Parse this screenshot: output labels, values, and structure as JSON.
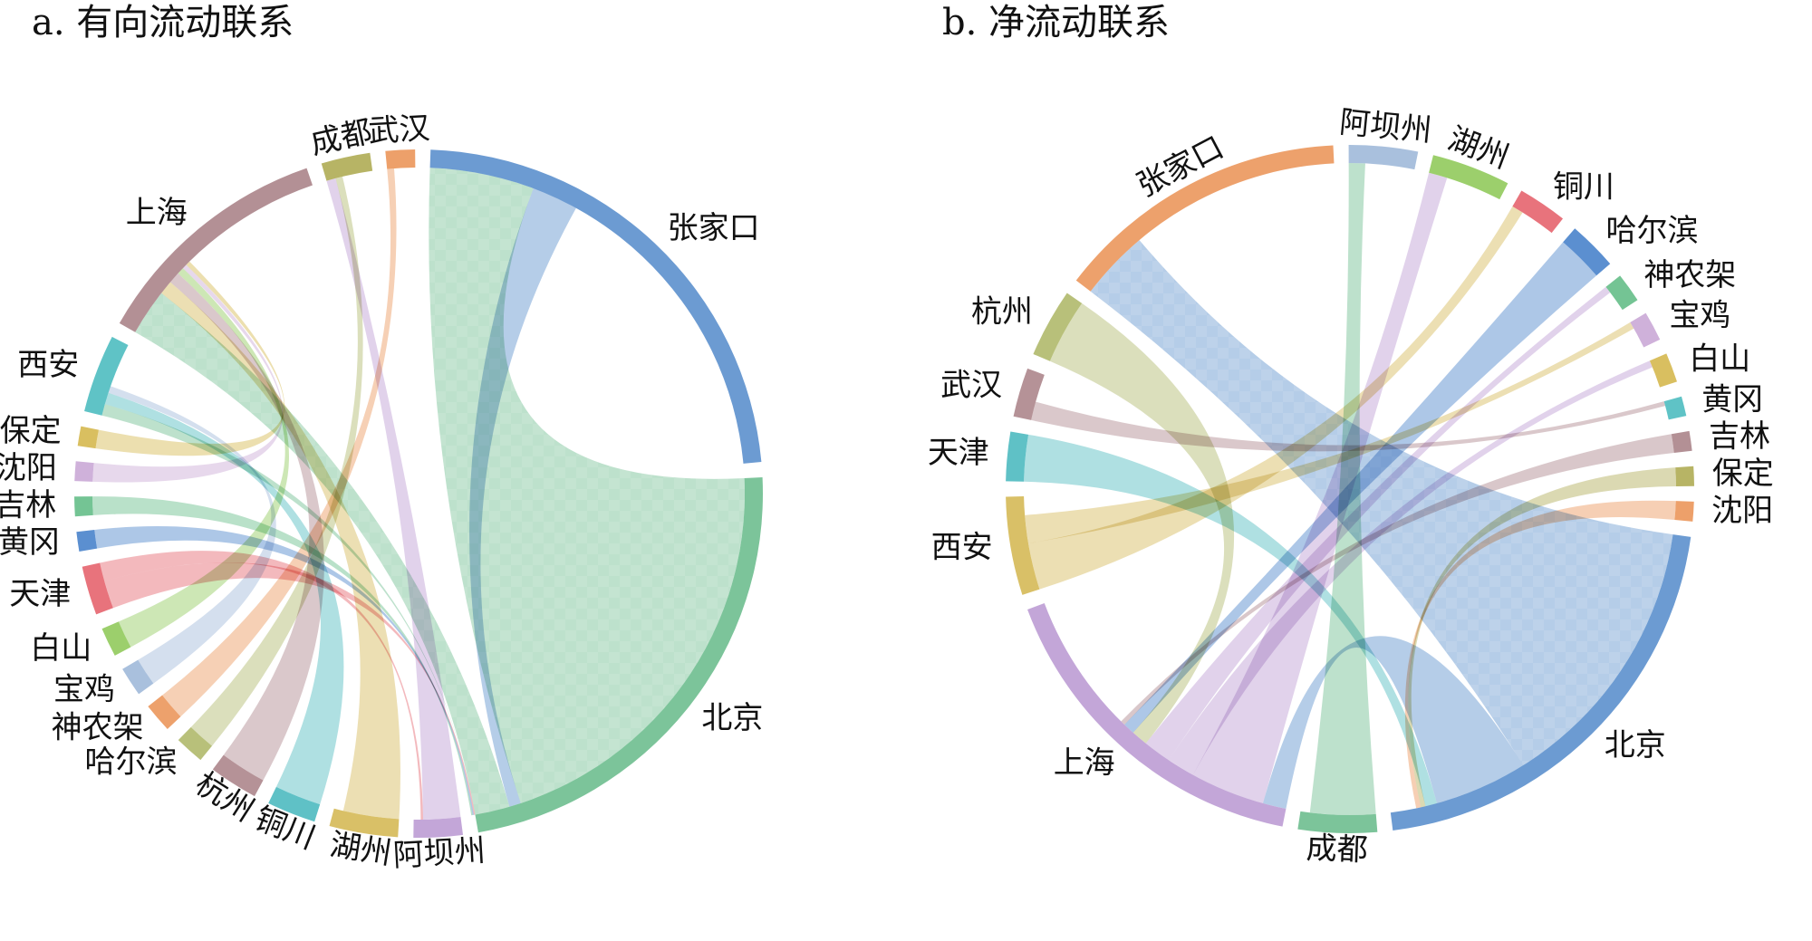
{
  "panels": [
    {
      "id": "a",
      "title": "a. 有向流动联系",
      "nodes": [
        {
          "name": "张家口",
          "color": "#6c9bd2"
        },
        {
          "name": "北京",
          "color": "#7cc49a"
        },
        {
          "name": "阿坝州",
          "color": "#c3a6d8"
        },
        {
          "name": "湖州",
          "color": "#d9c067"
        },
        {
          "name": "铜川",
          "color": "#5fc1c6"
        },
        {
          "name": "杭州",
          "color": "#b59297"
        },
        {
          "name": "哈尔滨",
          "color": "#b8c07a"
        },
        {
          "name": "神农架",
          "color": "#eda16c"
        },
        {
          "name": "宝鸡",
          "color": "#a9c0dd"
        },
        {
          "name": "白山",
          "color": "#9ccf6c"
        },
        {
          "name": "天津",
          "color": "#e8737c"
        },
        {
          "name": "黄冈",
          "color": "#5b8fd0"
        },
        {
          "name": "吉林",
          "color": "#74c494"
        },
        {
          "name": "沈阳",
          "color": "#cfb1da"
        },
        {
          "name": "保定",
          "color": "#d9bf60"
        },
        {
          "name": "西安",
          "color": "#5fc3c6"
        },
        {
          "name": "上海",
          "color": "#b39095"
        },
        {
          "name": "成都",
          "color": "#b7b465"
        },
        {
          "name": "武汉",
          "color": "#eda06a"
        }
      ]
    },
    {
      "id": "b",
      "title": "b. 净流动联系",
      "nodes": [
        {
          "name": "北京",
          "color": "#6c9bd2"
        },
        {
          "name": "成都",
          "color": "#7cc49a"
        },
        {
          "name": "上海",
          "color": "#c3a6d8"
        },
        {
          "name": "西安",
          "color": "#d9c067"
        },
        {
          "name": "天津",
          "color": "#5fc1c6"
        },
        {
          "name": "武汉",
          "color": "#b59297"
        },
        {
          "name": "杭州",
          "color": "#b8c07a"
        },
        {
          "name": "张家口",
          "color": "#eda16c"
        },
        {
          "name": "阿坝州",
          "color": "#a9c0dd"
        },
        {
          "name": "湖州",
          "color": "#9ccf6c"
        },
        {
          "name": "铜川",
          "color": "#e8737c"
        },
        {
          "name": "哈尔滨",
          "color": "#5b8fd0"
        },
        {
          "name": "神农架",
          "color": "#74c494"
        },
        {
          "name": "宝鸡",
          "color": "#cfb1da"
        },
        {
          "name": "白山",
          "color": "#d9bf60"
        },
        {
          "name": "黄冈",
          "color": "#5fc3c6"
        },
        {
          "name": "吉林",
          "color": "#b39095"
        },
        {
          "name": "保定",
          "color": "#b7b465"
        },
        {
          "name": "沈阳",
          "color": "#eda06a"
        }
      ]
    }
  ],
  "chart_data": [
    {
      "type": "chord",
      "title": "a. 有向流动联系",
      "nodes": [
        "张家口",
        "北京",
        "阿坝州",
        "湖州",
        "铜川",
        "杭州",
        "哈尔滨",
        "神农架",
        "宝鸡",
        "白山",
        "天津",
        "黄冈",
        "吉林",
        "沈阳",
        "保定",
        "西安",
        "上海",
        "成都",
        "武汉"
      ],
      "node_weights": [
        50,
        50,
        5,
        7,
        5,
        5,
        3,
        3,
        3,
        3,
        5,
        2,
        2,
        2,
        2,
        8,
        25,
        5,
        3
      ],
      "links": [
        [
          "北京",
          "张家口",
          45
        ],
        [
          "张家口",
          "北京",
          5
        ],
        [
          "北京",
          "上海",
          20
        ],
        [
          "北京",
          "西安",
          5
        ],
        [
          "天津",
          "北京",
          3
        ],
        [
          "黄冈",
          "北京",
          2
        ],
        [
          "吉林",
          "北京",
          2
        ],
        [
          "阿坝州",
          "成都",
          4
        ],
        [
          "湖州",
          "上海",
          6
        ],
        [
          "铜川",
          "西安",
          5
        ],
        [
          "杭州",
          "上海",
          5
        ],
        [
          "哈尔滨",
          "成都",
          3
        ],
        [
          "神农架",
          "武汉",
          3
        ],
        [
          "宝鸡",
          "西安",
          3
        ],
        [
          "白山",
          "上海",
          3
        ],
        [
          "沈阳",
          "上海",
          2
        ],
        [
          "保定",
          "上海",
          2
        ],
        [
          "天津",
          "阿坝州",
          2
        ]
      ]
    },
    {
      "type": "chord",
      "title": "b. 净流动联系",
      "nodes": [
        "北京",
        "成都",
        "上海",
        "西安",
        "天津",
        "武汉",
        "杭州",
        "张家口",
        "阿坝州",
        "湖州",
        "铜川",
        "哈尔滨",
        "神农架",
        "宝鸡",
        "白山",
        "黄冈",
        "吉林",
        "保定",
        "沈阳"
      ],
      "node_weights": [
        45,
        8,
        35,
        10,
        5,
        5,
        7,
        30,
        7,
        8,
        5,
        5,
        3,
        3,
        3,
        2,
        2,
        2,
        2
      ],
      "links": [
        [
          "北京",
          "张家口",
          30
        ],
        [
          "北京",
          "上海",
          10
        ],
        [
          "成都",
          "阿坝州",
          7
        ],
        [
          "上海",
          "湖州",
          8
        ],
        [
          "上海",
          "白山",
          3
        ],
        [
          "上海",
          "神农架",
          3
        ],
        [
          "西安",
          "铜川",
          5
        ],
        [
          "西安",
          "宝鸡",
          3
        ],
        [
          "天津",
          "北京",
          5
        ],
        [
          "武汉",
          "黄冈",
          2
        ],
        [
          "杭州",
          "上海",
          7
        ],
        [
          "哈尔滨",
          "上海",
          5
        ],
        [
          "吉林",
          "上海",
          2
        ],
        [
          "保定",
          "北京",
          2
        ],
        [
          "沈阳",
          "北京",
          2
        ]
      ]
    }
  ]
}
